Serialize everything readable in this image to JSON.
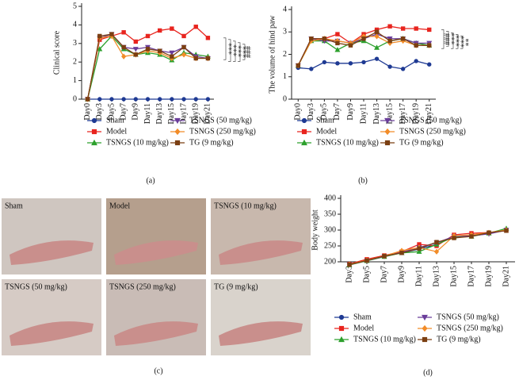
{
  "chart_data": [
    {
      "type": "line",
      "caption": "(a)",
      "y_label": "Clinical score",
      "categories": [
        "Day0",
        "Day3",
        "Day5",
        "Day7",
        "Day9",
        "Day11",
        "Day13",
        "Day15",
        "Day17",
        "Day19",
        "Day21"
      ],
      "ylim": [
        0,
        5
      ],
      "yticks": [
        0,
        1,
        2,
        3,
        4,
        5
      ],
      "annotations": [
        "***",
        "***",
        "***",
        "***",
        "###"
      ],
      "series": [
        {
          "name": "Sham",
          "color": "#1f3a93",
          "marker": "circle",
          "values": [
            0,
            0,
            0,
            0,
            0,
            0,
            0,
            0,
            0,
            0,
            0
          ]
        },
        {
          "name": "Model",
          "color": "#e8251f",
          "marker": "square",
          "values": [
            0,
            3.2,
            3.4,
            3.6,
            3.1,
            3.4,
            3.7,
            3.8,
            3.4,
            3.9,
            3.3
          ]
        },
        {
          "name": "TSNGS (10 mg/kg)",
          "color": "#2ca02c",
          "marker": "triangle-up",
          "values": [
            0,
            2.7,
            3.4,
            2.7,
            2.4,
            2.5,
            2.4,
            2.1,
            2.5,
            2.4,
            2.3
          ]
        },
        {
          "name": "TSNGS (50 mg/kg)",
          "color": "#6a3d9a",
          "marker": "triangle-down",
          "values": [
            0,
            3.3,
            3.5,
            2.8,
            2.7,
            2.8,
            2.6,
            2.5,
            2.8,
            2.3,
            2.2
          ]
        },
        {
          "name": "TSNGS (250 mg/kg)",
          "color": "#f28c28",
          "marker": "diamond",
          "values": [
            0,
            3.3,
            3.4,
            2.3,
            2.4,
            2.6,
            2.5,
            2.2,
            2.4,
            2.2,
            2.2
          ]
        },
        {
          "name": "TG (9 mg/kg)",
          "color": "#7b3f12",
          "marker": "square",
          "values": [
            0,
            3.4,
            3.5,
            2.8,
            2.4,
            2.7,
            2.6,
            2.3,
            2.8,
            2.2,
            2.2
          ]
        }
      ]
    },
    {
      "type": "line",
      "caption": "(b)",
      "y_label": "The volume of hind paw",
      "categories": [
        "Day0",
        "Day3",
        "Day5",
        "Day7",
        "Day9",
        "Day11",
        "Day13",
        "Day15",
        "Day17",
        "Day19",
        "Day21"
      ],
      "ylim": [
        0,
        4
      ],
      "yticks": [
        0,
        1,
        2,
        3,
        4
      ],
      "annotations": [
        "###",
        "***",
        "***",
        "***",
        "**"
      ],
      "series": [
        {
          "name": "Sham",
          "color": "#1f3a93",
          "marker": "circle",
          "values": [
            1.4,
            1.35,
            1.65,
            1.6,
            1.6,
            1.65,
            1.8,
            1.45,
            1.35,
            1.7,
            1.55
          ]
        },
        {
          "name": "Model",
          "color": "#e8251f",
          "marker": "square",
          "values": [
            1.5,
            2.7,
            2.7,
            2.9,
            2.5,
            2.9,
            3.1,
            3.25,
            3.15,
            3.15,
            3.1
          ]
        },
        {
          "name": "TSNGS (10 mg/kg)",
          "color": "#2ca02c",
          "marker": "triangle-up",
          "values": [
            1.5,
            2.6,
            2.6,
            2.2,
            2.5,
            2.6,
            2.3,
            2.6,
            2.7,
            2.5,
            2.4
          ]
        },
        {
          "name": "TSNGS (50 mg/kg)",
          "color": "#6a3d9a",
          "marker": "triangle-down",
          "values": [
            1.5,
            2.7,
            2.6,
            2.6,
            2.5,
            2.7,
            2.9,
            2.7,
            2.7,
            2.5,
            2.5
          ]
        },
        {
          "name": "TSNGS (250 mg/kg)",
          "color": "#f28c28",
          "marker": "diamond",
          "values": [
            1.5,
            2.6,
            2.7,
            2.6,
            2.5,
            2.8,
            2.8,
            2.5,
            2.6,
            2.4,
            2.4
          ]
        },
        {
          "name": "TG (9 mg/kg)",
          "color": "#7b3f12",
          "marker": "square",
          "values": [
            1.5,
            2.7,
            2.7,
            2.5,
            2.4,
            2.7,
            3.0,
            2.6,
            2.7,
            2.4,
            2.4
          ]
        }
      ]
    },
    {
      "type": "line",
      "caption": "(d)",
      "y_label": "Body weight",
      "categories": [
        "Day3",
        "Day5",
        "Day7",
        "Day9",
        "Day11",
        "Day13",
        "Day15",
        "Day17",
        "Day19",
        "Day21"
      ],
      "ylim": [
        200,
        400
      ],
      "yticks": [
        200,
        250,
        300,
        350,
        400
      ],
      "series": [
        {
          "name": "Sham",
          "color": "#1f3a93",
          "marker": "circle",
          "values": [
            192,
            205,
            218,
            228,
            240,
            255,
            280,
            282,
            290,
            300
          ]
        },
        {
          "name": "Model",
          "color": "#e8251f",
          "marker": "square",
          "values": [
            193,
            208,
            220,
            232,
            255,
            250,
            285,
            290,
            292,
            298
          ]
        },
        {
          "name": "TSNGS (10 mg/kg)",
          "color": "#2ca02c",
          "marker": "triangle-up",
          "values": [
            190,
            203,
            216,
            228,
            232,
            255,
            278,
            280,
            290,
            305
          ]
        },
        {
          "name": "TSNGS (50 mg/kg)",
          "color": "#6a3d9a",
          "marker": "triangle-down",
          "values": [
            191,
            204,
            217,
            230,
            245,
            260,
            280,
            282,
            288,
            300
          ]
        },
        {
          "name": "TSNGS (250 mg/kg)",
          "color": "#f28c28",
          "marker": "diamond",
          "values": [
            192,
            205,
            218,
            235,
            245,
            232,
            282,
            285,
            292,
            300
          ]
        },
        {
          "name": "TG (9 mg/kg)",
          "color": "#7b3f12",
          "marker": "square",
          "values": [
            191,
            204,
            218,
            228,
            242,
            262,
            275,
            280,
            292,
            298
          ]
        }
      ]
    }
  ],
  "photo_panel": {
    "caption": "(c)",
    "labels": [
      "Sham",
      "Model",
      "TSNGS (10 mg/kg)",
      "TSNGS (50 mg/kg)",
      "TSNGS (250 mg/kg)",
      "TG (9 mg/kg)"
    ]
  }
}
